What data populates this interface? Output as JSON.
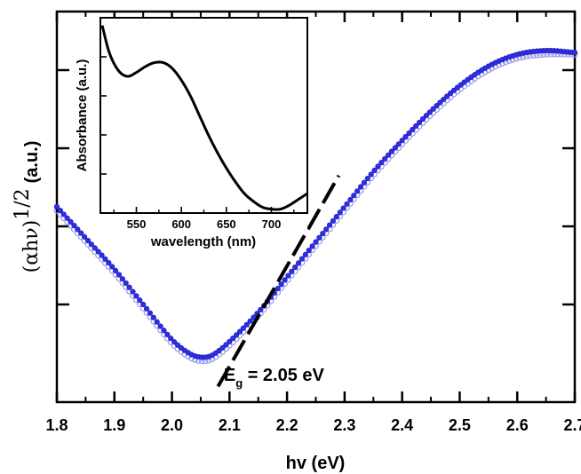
{
  "chart_data": [
    {
      "type": "scatter",
      "xlabel": "hv (eV)",
      "ylabel_main": "(αhν)",
      "ylabel_exp": "1/2",
      "ylabel_unit": "(a.u.)",
      "xlim": [
        1.8,
        2.7
      ],
      "ylim": [
        0,
        1
      ],
      "x_ticks": [
        "1.8",
        "1.9",
        "2.0",
        "2.1",
        "2.2",
        "2.3",
        "2.4",
        "2.5",
        "2.6",
        "2.7"
      ],
      "y_tick_values": [
        0.25,
        0.45,
        0.65,
        0.85
      ],
      "series": [
        {
          "marker": "filled-circle",
          "color": "#2e2ee6",
          "x": [
            1.8,
            1.85,
            1.9,
            1.95,
            2.0,
            2.03,
            2.05,
            2.07,
            2.1,
            2.15,
            2.2,
            2.25,
            2.3,
            2.35,
            2.4,
            2.45,
            2.5,
            2.55,
            2.6,
            2.65,
            2.7
          ],
          "y": [
            0.5,
            0.42,
            0.34,
            0.25,
            0.16,
            0.125,
            0.115,
            0.12,
            0.155,
            0.23,
            0.32,
            0.41,
            0.5,
            0.59,
            0.67,
            0.745,
            0.81,
            0.86,
            0.89,
            0.9,
            0.895
          ]
        },
        {
          "marker": "open-circle",
          "color": "#9a9ae8",
          "x": [
            1.8,
            1.85,
            1.9,
            1.95,
            2.0,
            2.03,
            2.05,
            2.07,
            2.1,
            2.15,
            2.2,
            2.25,
            2.3,
            2.35,
            2.4,
            2.45,
            2.5,
            2.55,
            2.6,
            2.65,
            2.7
          ],
          "y": [
            0.49,
            0.41,
            0.33,
            0.24,
            0.15,
            0.115,
            0.105,
            0.11,
            0.145,
            0.22,
            0.31,
            0.4,
            0.49,
            0.58,
            0.66,
            0.735,
            0.8,
            0.85,
            0.88,
            0.89,
            0.89
          ]
        }
      ],
      "fit_line": {
        "x": [
          2.08,
          2.29
        ],
        "y": [
          0.04,
          0.58
        ],
        "color": "#000000",
        "style": "dashed"
      },
      "annotation": {
        "main": "E",
        "sub": "g",
        "rest": " = 2.05 eV",
        "x": 2.09,
        "y": 0.055
      }
    },
    {
      "type": "line",
      "role": "inset",
      "xlabel": "wavelength (nm)",
      "ylabel": "Absorbance (a.u.)",
      "xlim": [
        510,
        740
      ],
      "ylim": [
        0,
        1
      ],
      "x_ticks": [
        550,
        600,
        650,
        700
      ],
      "y_tick_values": [
        0.2,
        0.4,
        0.6,
        0.8
      ],
      "series": [
        {
          "color": "#000000",
          "x": [
            512,
            520,
            530,
            540,
            550,
            560,
            570,
            580,
            590,
            600,
            610,
            620,
            630,
            640,
            650,
            660,
            670,
            680,
            690,
            700,
            710,
            720,
            730,
            740
          ],
          "y": [
            0.96,
            0.82,
            0.73,
            0.7,
            0.72,
            0.75,
            0.77,
            0.77,
            0.74,
            0.68,
            0.6,
            0.5,
            0.4,
            0.31,
            0.23,
            0.16,
            0.1,
            0.06,
            0.03,
            0.02,
            0.02,
            0.04,
            0.07,
            0.1
          ]
        }
      ]
    }
  ]
}
